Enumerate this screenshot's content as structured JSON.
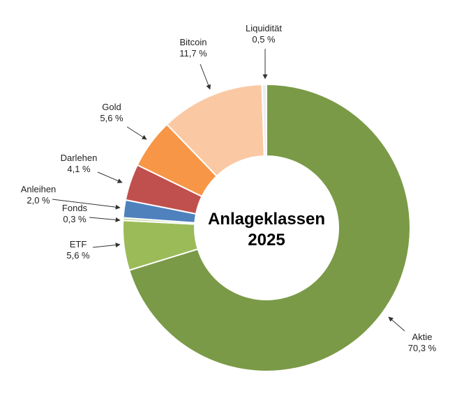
{
  "chart_data": {
    "type": "donut",
    "title": "Anlageklassen 2025",
    "categories": [
      "Aktie",
      "ETF",
      "Fonds",
      "Anleihen",
      "Darlehen",
      "Gold",
      "Bitcoin",
      "Liquidität"
    ],
    "values": [
      70.3,
      5.6,
      0.3,
      2.0,
      4.1,
      5.6,
      11.7,
      0.5
    ],
    "value_labels": [
      "70,3 %",
      "5,6 %",
      "0,3 %",
      "2,0 %",
      "4,1 %",
      "5,6 %",
      "11,7 %",
      "0,5 %"
    ],
    "colors": [
      "#7a9a47",
      "#9bbb59",
      "#c6d9a0",
      "#4f81bd",
      "#c0504d",
      "#f79646",
      "#fac9a4",
      "#eeeeee"
    ]
  }
}
